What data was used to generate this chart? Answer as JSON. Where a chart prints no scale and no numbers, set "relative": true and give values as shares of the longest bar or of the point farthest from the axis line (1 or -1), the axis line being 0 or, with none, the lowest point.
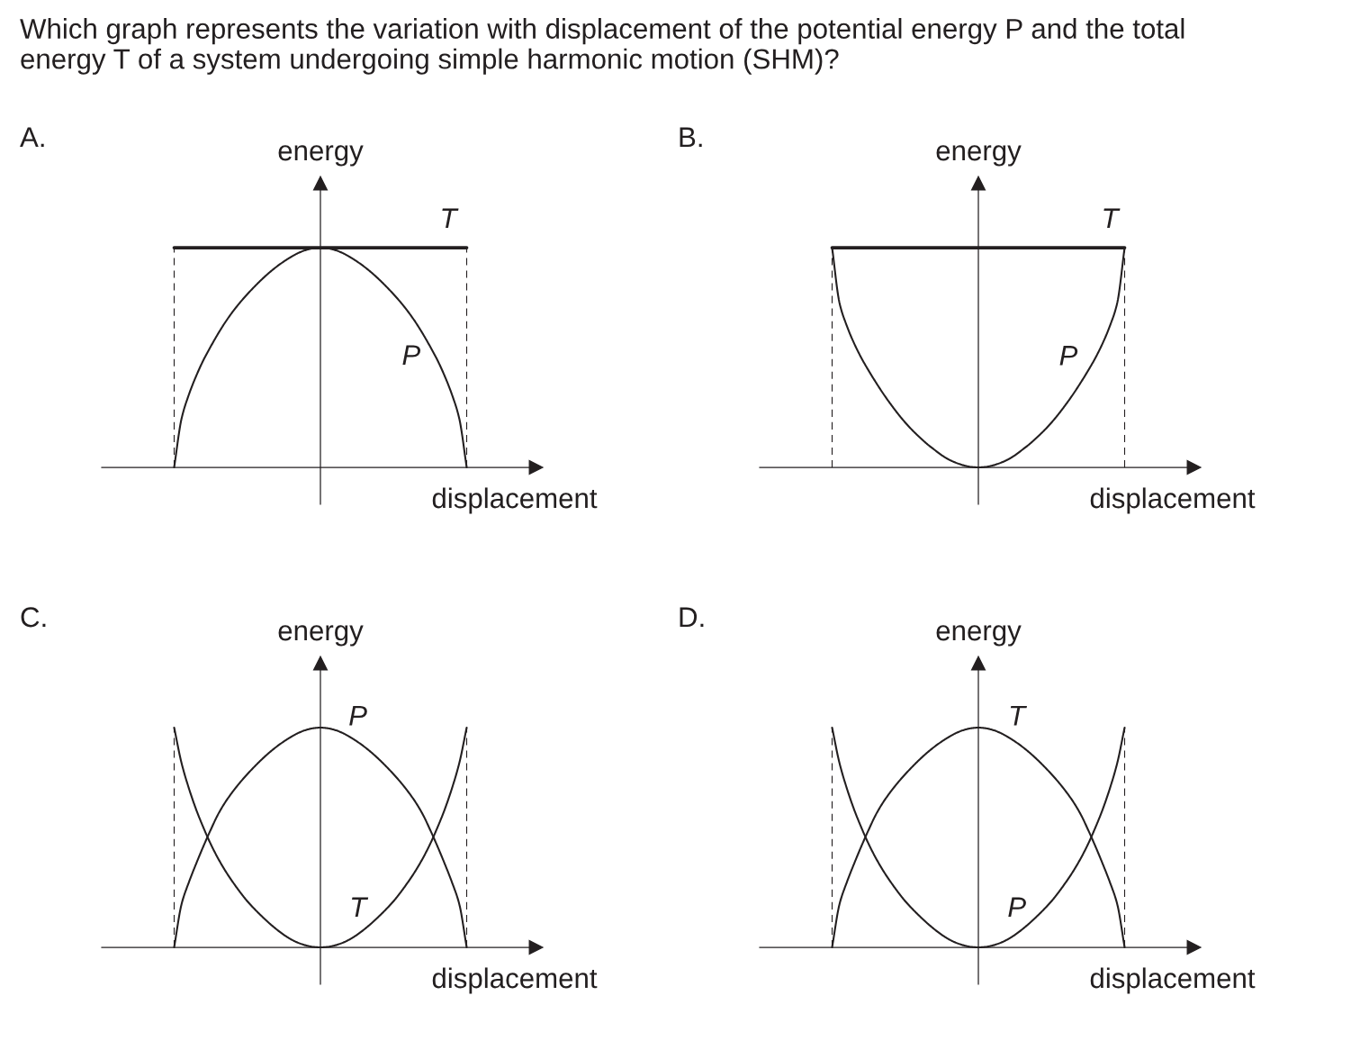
{
  "chart_data": [
    {
      "type": "line",
      "title": "A.",
      "xlabel": "displacement",
      "ylabel": "energy",
      "relative": true,
      "annotations": [
        "Which graph represents the variation with displacement of the potential energy P and the total\nenergy T of a system undergoing simple harmonic motion (SHM)?"
      ],
      "categories": [
        null,
        null,
        null,
        null,
        null,
        null,
        null,
        null,
        null,
        null,
        null,
        null,
        null,
        null,
        null,
        null,
        null,
        null,
        null,
        null,
        null,
        null,
        null,
        null,
        null,
        null,
        null,
        null,
        null,
        null,
        null,
        null,
        null,
        null,
        null,
        null,
        null,
        null,
        null,
        null,
        null
      ],
      "series": [
        {
          "name": "T",
          "color": "#231f20",
          "values": [
            1,
            1,
            1,
            1,
            1,
            1,
            1,
            1,
            1,
            1,
            1,
            1,
            1,
            1,
            1,
            1,
            1,
            1,
            1,
            1,
            1,
            1,
            1,
            1,
            1,
            1,
            1,
            1,
            1,
            1,
            1,
            1,
            1,
            1,
            1,
            1,
            1,
            1,
            1,
            1,
            1
          ]
        },
        {
          "name": "P",
          "color": "#231f20",
          "values": [
            0,
            0.22,
            0.33,
            0.415,
            0.488,
            0.55,
            0.608,
            0.661,
            0.708,
            0.75,
            0.788,
            0.823,
            0.856,
            0.886,
            0.913,
            0.937,
            0.958,
            0.976,
            0.989,
            0.997,
            1,
            0.997,
            0.989,
            0.976,
            0.958,
            0.937,
            0.913,
            0.886,
            0.856,
            0.823,
            0.788,
            0.75,
            0.708,
            0.661,
            0.608,
            0.55,
            0.488,
            0.415,
            0.33,
            0.22,
            0
          ]
        }
      ]
    },
    {
      "type": "line",
      "title": "B.",
      "xlabel": "displacement",
      "ylabel": "energy",
      "relative": true,
      "categories": [
        null,
        null,
        null,
        null,
        null,
        null,
        null,
        null,
        null,
        null,
        null,
        null,
        null,
        null,
        null,
        null,
        null,
        null,
        null,
        null,
        null,
        null,
        null,
        null,
        null,
        null,
        null,
        null,
        null,
        null,
        null,
        null,
        null,
        null,
        null,
        null,
        null,
        null,
        null,
        null,
        null
      ],
      "series": [
        {
          "name": "T",
          "color": "#231f20",
          "values": [
            1,
            1,
            1,
            1,
            1,
            1,
            1,
            1,
            1,
            1,
            1,
            1,
            1,
            1,
            1,
            1,
            1,
            1,
            1,
            1,
            1,
            1,
            1,
            1,
            1,
            1,
            1,
            1,
            1,
            1,
            1,
            1,
            1,
            1,
            1,
            1,
            1,
            1,
            1,
            1,
            1
          ]
        },
        {
          "name": "P",
          "color": "#231f20",
          "values": [
            1,
            0.75,
            0.645,
            0.565,
            0.498,
            0.44,
            0.386,
            0.335,
            0.288,
            0.244,
            0.204,
            0.168,
            0.136,
            0.106,
            0.08,
            0.055,
            0.035,
            0.02,
            0.009,
            0.002,
            0,
            0.002,
            0.009,
            0.02,
            0.035,
            0.055,
            0.08,
            0.106,
            0.136,
            0.168,
            0.204,
            0.244,
            0.288,
            0.335,
            0.386,
            0.44,
            0.498,
            0.565,
            0.645,
            0.75,
            1
          ]
        }
      ]
    },
    {
      "type": "line",
      "title": "C.",
      "xlabel": "displacement",
      "ylabel": "energy",
      "relative": true,
      "categories": [
        null,
        null,
        null,
        null,
        null,
        null,
        null,
        null,
        null,
        null,
        null,
        null,
        null,
        null,
        null,
        null,
        null,
        null,
        null,
        null,
        null,
        null,
        null,
        null,
        null,
        null,
        null,
        null,
        null,
        null,
        null,
        null,
        null,
        null,
        null,
        null,
        null,
        null,
        null,
        null,
        null
      ],
      "series": [
        {
          "name": "T",
          "color": "#231f20",
          "values": [
            1,
            0.84,
            0.725,
            0.628,
            0.545,
            0.47,
            0.405,
            0.348,
            0.298,
            0.252,
            0.21,
            0.174,
            0.141,
            0.11,
            0.082,
            0.057,
            0.036,
            0.02,
            0.009,
            0.002,
            0,
            0.002,
            0.009,
            0.02,
            0.036,
            0.057,
            0.082,
            0.11,
            0.141,
            0.174,
            0.21,
            0.252,
            0.298,
            0.348,
            0.405,
            0.47,
            0.545,
            0.628,
            0.725,
            0.84,
            1
          ]
        },
        {
          "name": "P",
          "color": "#231f20",
          "values": [
            0,
            0.195,
            0.295,
            0.38,
            0.46,
            0.535,
            0.605,
            0.661,
            0.708,
            0.75,
            0.788,
            0.823,
            0.856,
            0.886,
            0.913,
            0.937,
            0.958,
            0.976,
            0.989,
            0.997,
            1,
            0.997,
            0.989,
            0.976,
            0.958,
            0.937,
            0.913,
            0.886,
            0.856,
            0.823,
            0.788,
            0.75,
            0.708,
            0.661,
            0.605,
            0.535,
            0.46,
            0.38,
            0.295,
            0.195,
            0
          ]
        }
      ]
    },
    {
      "type": "line",
      "title": "D.",
      "xlabel": "displacement",
      "ylabel": "energy",
      "relative": true,
      "categories": [
        null,
        null,
        null,
        null,
        null,
        null,
        null,
        null,
        null,
        null,
        null,
        null,
        null,
        null,
        null,
        null,
        null,
        null,
        null,
        null,
        null,
        null,
        null,
        null,
        null,
        null,
        null,
        null,
        null,
        null,
        null,
        null,
        null,
        null,
        null,
        null,
        null,
        null,
        null,
        null,
        null
      ],
      "series": [
        {
          "name": "T",
          "color": "#231f20",
          "values": [
            0,
            0.195,
            0.295,
            0.38,
            0.46,
            0.535,
            0.605,
            0.661,
            0.708,
            0.75,
            0.788,
            0.823,
            0.856,
            0.886,
            0.913,
            0.937,
            0.958,
            0.976,
            0.989,
            0.997,
            1,
            0.997,
            0.989,
            0.976,
            0.958,
            0.937,
            0.913,
            0.886,
            0.856,
            0.823,
            0.788,
            0.75,
            0.708,
            0.661,
            0.605,
            0.535,
            0.46,
            0.38,
            0.295,
            0.195,
            0
          ]
        },
        {
          "name": "P",
          "color": "#231f20",
          "values": [
            1,
            0.84,
            0.725,
            0.628,
            0.545,
            0.47,
            0.405,
            0.348,
            0.298,
            0.252,
            0.21,
            0.174,
            0.141,
            0.11,
            0.082,
            0.057,
            0.036,
            0.02,
            0.009,
            0.002,
            0,
            0.002,
            0.009,
            0.02,
            0.036,
            0.057,
            0.082,
            0.11,
            0.141,
            0.174,
            0.21,
            0.252,
            0.298,
            0.348,
            0.405,
            0.47,
            0.545,
            0.628,
            0.725,
            0.84,
            1
          ]
        }
      ]
    }
  ]
}
